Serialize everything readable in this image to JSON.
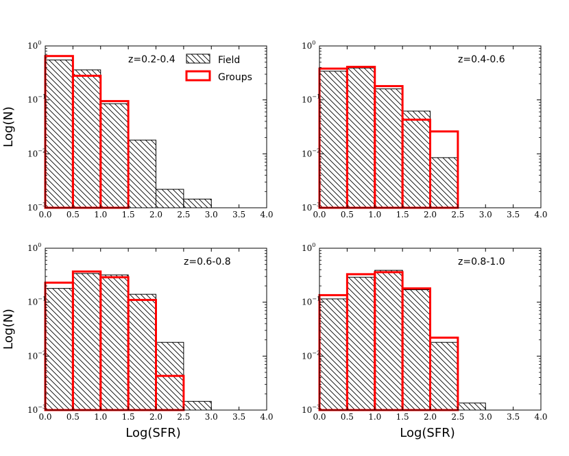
{
  "chart_data": {
    "type": "bar",
    "layout": "2x2 grid of histograms",
    "xlabel": "Log(SFR)",
    "ylabel": "Log(N)",
    "xlim": [
      0.0,
      4.0
    ],
    "ylim": [
      0.001,
      1.0
    ],
    "yscale": "log",
    "xticks": [
      "0.0",
      "0.5",
      "1.0",
      "1.5",
      "2.0",
      "2.5",
      "3.0",
      "3.5",
      "4.0"
    ],
    "ytick_base": "10",
    "ytick_exponents": [
      "0",
      "−1",
      "−2",
      "−3"
    ],
    "bin_edges": [
      0.0,
      0.5,
      1.0,
      1.5,
      2.0,
      2.5,
      3.0,
      3.5,
      4.0
    ],
    "legend": {
      "location": "top-right of first panel",
      "entries": [
        {
          "label": "Field",
          "style": "hatched",
          "color": "#000000"
        },
        {
          "label": "Groups",
          "style": "outline",
          "color": "#ff0000"
        }
      ]
    },
    "panels": [
      {
        "label": "z=0.2-0.4",
        "series": [
          {
            "name": "Field",
            "values": [
              0.55,
              0.36,
              0.085,
              0.018,
              0.0022,
              0.00145,
              null,
              null
            ]
          },
          {
            "name": "Groups",
            "values": [
              0.65,
              0.28,
              0.095,
              null,
              null,
              null,
              null,
              null
            ]
          }
        ]
      },
      {
        "label": "z=0.4-0.6",
        "series": [
          {
            "name": "Field",
            "values": [
              0.34,
              0.39,
              0.16,
              0.062,
              0.0085,
              null,
              null,
              null
            ]
          },
          {
            "name": "Groups",
            "values": [
              0.38,
              0.41,
              0.18,
              0.043,
              0.026,
              null,
              null,
              null
            ]
          }
        ]
      },
      {
        "label": "z=0.6-0.8",
        "series": [
          {
            "name": "Field",
            "values": [
              0.18,
              0.34,
              0.32,
              0.14,
              0.018,
              0.00145,
              null,
              null
            ]
          },
          {
            "name": "Groups",
            "values": [
              0.23,
              0.37,
              0.29,
              0.11,
              0.0043,
              null,
              null,
              null
            ]
          }
        ]
      },
      {
        "label": "z=0.8-1.0",
        "series": [
          {
            "name": "Field",
            "values": [
              0.115,
              0.29,
              0.39,
              0.17,
              0.018,
              0.00135,
              null,
              null
            ]
          },
          {
            "name": "Groups",
            "values": [
              0.135,
              0.33,
              0.36,
              0.18,
              0.022,
              null,
              null,
              null
            ]
          }
        ]
      }
    ]
  },
  "colors": {
    "field": "#000000",
    "groups": "#ff0000"
  }
}
